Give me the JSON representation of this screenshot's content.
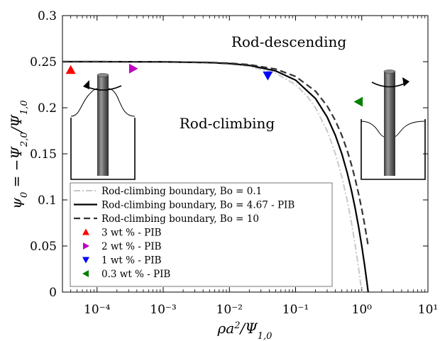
{
  "chart_data": {
    "type": "line",
    "xlabel": "ρa²/Ψ₁,₀",
    "ylabel": "ψ₀ = −Ψ₂,₀/Ψ₁,₀",
    "xscale": "log",
    "xlim": [
      3e-05,
      10
    ],
    "ylim": [
      0,
      0.3
    ],
    "grid": false,
    "legend_position": "bottom-left",
    "x_tick_labels": [
      "10⁻⁴",
      "10⁻³",
      "10⁻²",
      "10⁻¹",
      "10⁰",
      "10¹"
    ],
    "y_tick_labels": [
      "0",
      "0.05",
      "0.1",
      "0.15",
      "0.2",
      "0.25",
      "0.3"
    ],
    "annotations": [
      "Rod-descending",
      "Rod-climbing"
    ],
    "series": [
      {
        "name": "Rod-climbing boundary, Bo = 0.1",
        "kind": "line",
        "style": "dash-dot",
        "color": "#c8c8c8",
        "x": [
          3e-05,
          0.0001,
          0.001,
          0.005,
          0.01,
          0.02,
          0.05,
          0.1,
          0.15,
          0.2,
          0.3,
          0.4,
          0.5,
          0.6,
          0.7,
          0.8,
          0.9,
          0.97,
          1.0
        ],
        "y": [
          0.25,
          0.25,
          0.2497,
          0.2487,
          0.2475,
          0.245,
          0.2375,
          0.225,
          0.2125,
          0.2,
          0.175,
          0.15,
          0.125,
          0.1,
          0.075,
          0.05,
          0.025,
          0.0075,
          0.0
        ]
      },
      {
        "name": "Rod-climbing boundary, Bo = 4.67 - PIB",
        "kind": "line",
        "style": "solid",
        "color": "#000000",
        "x": [
          3e-05,
          0.0001,
          0.001,
          0.005,
          0.01,
          0.02,
          0.05,
          0.1,
          0.2,
          0.3,
          0.4,
          0.5,
          0.6,
          0.7,
          0.8,
          0.9,
          1.0,
          1.1,
          1.2,
          1.25
        ],
        "y": [
          0.25,
          0.25,
          0.2498,
          0.249,
          0.248,
          0.246,
          0.24,
          0.23,
          0.21,
          0.19,
          0.17,
          0.15,
          0.13,
          0.11,
          0.09,
          0.07,
          0.05,
          0.03,
          0.01,
          0.0
        ]
      },
      {
        "name": "Rod-climbing boundary, Bo = 10",
        "kind": "line",
        "style": "dashed",
        "color": "#333333",
        "x": [
          3e-05,
          0.0001,
          0.001,
          0.005,
          0.01,
          0.02,
          0.05,
          0.1,
          0.2,
          0.3,
          0.4,
          0.5,
          0.6,
          0.7,
          0.8,
          0.9,
          1.0,
          1.1,
          1.2,
          1.25
        ],
        "y": [
          0.25,
          0.25,
          0.2498,
          0.2492,
          0.2484,
          0.2468,
          0.242,
          0.234,
          0.218,
          0.202,
          0.186,
          0.17,
          0.154,
          0.138,
          0.122,
          0.106,
          0.09,
          0.074,
          0.058,
          0.05
        ]
      },
      {
        "name": "3 wt % - PIB",
        "kind": "point",
        "marker": "triangle-up",
        "color": "#ff0000",
        "x": [
          4e-05
        ],
        "y": [
          0.241
        ]
      },
      {
        "name": "2 wt % - PIB",
        "kind": "point",
        "marker": "triangle-right",
        "color": "#c000c0",
        "x": [
          0.00035
        ],
        "y": [
          0.2425
        ]
      },
      {
        "name": "1 wt % - PIB",
        "kind": "point",
        "marker": "triangle-down",
        "color": "#0000ff",
        "x": [
          0.038
        ],
        "y": [
          0.235
        ]
      },
      {
        "name": "0.3 wt % - PIB",
        "kind": "point",
        "marker": "triangle-left",
        "color": "#008000",
        "x": [
          0.9
        ],
        "y": [
          0.2065
        ]
      }
    ]
  }
}
